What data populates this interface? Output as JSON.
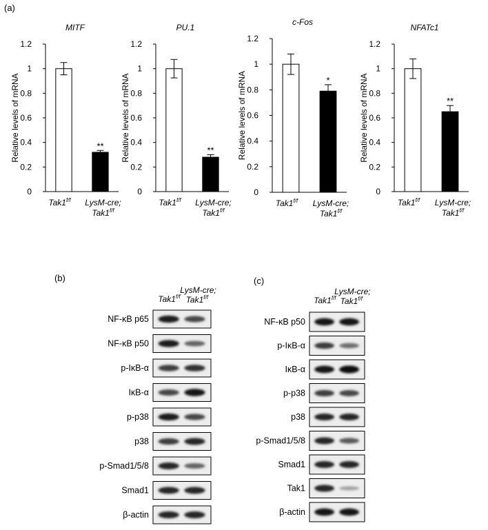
{
  "panels": {
    "a": "(a)",
    "b": "(b)",
    "c": "(c)"
  },
  "chart_data": [
    {
      "type": "bar",
      "title": "MITF",
      "ylabel": "Relative levels of mRNA",
      "categories": [
        "Tak1",
        "LysM-cre;\nTak1"
      ],
      "values": [
        1.0,
        0.32
      ],
      "errors": [
        0.05,
        0.015
      ],
      "significance": [
        "",
        "**"
      ],
      "ylim": [
        0,
        1.2
      ],
      "yticks": [
        "0",
        "0.2",
        "0.4",
        "0.6",
        "0.8",
        "1",
        "1.2"
      ],
      "grid": false
    },
    {
      "type": "bar",
      "title": "PU.1",
      "ylabel": "Relative levels of  mRNA",
      "categories": [
        "Tak1",
        "LysM-cre;\nTak1"
      ],
      "values": [
        1.0,
        0.28
      ],
      "errors": [
        0.075,
        0.02
      ],
      "significance": [
        "",
        "**"
      ],
      "ylim": [
        0,
        1.2
      ],
      "yticks": [
        "0",
        "0.2",
        "0.4",
        "0.6",
        "0.8",
        "1",
        "1.2"
      ],
      "grid": false
    },
    {
      "type": "bar",
      "title": "c-Fos",
      "ylabel": "Relative levels of  mRNA",
      "categories": [
        "Tak1",
        "LysM-cre;\nTak1"
      ],
      "values": [
        1.0,
        0.79
      ],
      "errors": [
        0.08,
        0.05
      ],
      "significance": [
        "",
        "*"
      ],
      "ylim": [
        0,
        1.2
      ],
      "yticks": [
        "0",
        "0.2",
        "0.4",
        "0.6",
        "0.8",
        "1",
        "1.2"
      ],
      "grid": false
    },
    {
      "type": "bar",
      "title": "NFATc1",
      "ylabel": "Relative levels of  mRNA",
      "categories": [
        "Tak1",
        "LysM-cre;\nTak1"
      ],
      "values": [
        1.0,
        0.65
      ],
      "errors": [
        0.08,
        0.05
      ],
      "significance": [
        "",
        "**"
      ],
      "ylim": [
        0,
        1.2
      ],
      "yticks": [
        "0",
        "0.2",
        "0.4",
        "0.6",
        "0.8",
        "1",
        "1.2"
      ],
      "grid": false
    }
  ],
  "genotype_sup": "f/f",
  "blot_headers": {
    "col1": "Tak1",
    "col2_line1": "LysM-cre;",
    "col2_line2": "Tak1"
  },
  "blots_b": [
    {
      "label": "NF-κB p65",
      "band1": 0.9,
      "band2": 0.7
    },
    {
      "label": "NF-κB p50",
      "band1": 0.9,
      "band2": 0.55
    },
    {
      "label": "p-IκB-α",
      "band1": 0.75,
      "band2": 0.8
    },
    {
      "label": "IκB-α",
      "band1": 0.7,
      "band2": 0.95
    },
    {
      "label": "p-p38",
      "band1": 0.9,
      "band2": 0.7
    },
    {
      "label": "p38",
      "band1": 0.75,
      "band2": 0.85
    },
    {
      "label": "p-Smad1/5/8",
      "band1": 0.85,
      "band2": 0.55
    },
    {
      "label": "Smad1",
      "band1": 0.85,
      "band2": 0.85
    },
    {
      "label": "β-actin",
      "band1": 0.85,
      "band2": 0.85
    }
  ],
  "blots_c": [
    {
      "label": "NF-κB p50",
      "band1": 0.95,
      "band2": 0.95
    },
    {
      "label": "p-IκB-α",
      "band1": 0.75,
      "band2": 0.5
    },
    {
      "label": "IκB-α",
      "band1": 0.95,
      "band2": 1.0
    },
    {
      "label": "p-p38",
      "band1": 0.75,
      "band2": 0.7
    },
    {
      "label": "p38",
      "band1": 0.85,
      "band2": 0.85
    },
    {
      "label": "p-Smad1/5/8",
      "band1": 0.85,
      "band2": 0.6
    },
    {
      "label": "Smad1",
      "band1": 0.85,
      "band2": 0.85
    },
    {
      "label": "Tak1",
      "band1": 0.85,
      "band2": 0.25
    },
    {
      "label": "β-actin",
      "band1": 0.95,
      "band2": 0.95
    }
  ]
}
